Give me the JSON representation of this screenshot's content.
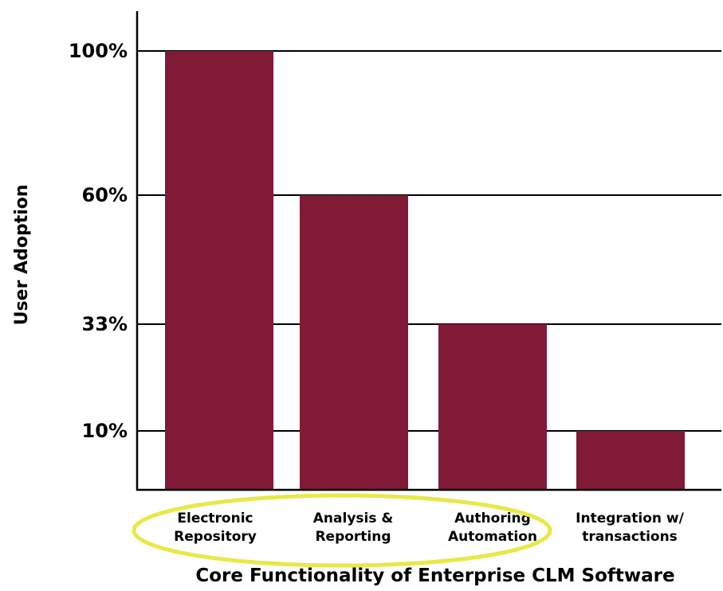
{
  "chart_data": {
    "type": "bar",
    "categories": [
      [
        "Electronic",
        "Repository"
      ],
      [
        "Analysis &",
        "Reporting"
      ],
      [
        "Authoring",
        "Automation"
      ],
      [
        "Integration w/",
        "transactions"
      ]
    ],
    "values": [
      100,
      60,
      33,
      10
    ],
    "ytick_labels": [
      "10%",
      "33%",
      "60%",
      "100%"
    ],
    "ytick_values": [
      10,
      33,
      60,
      100
    ],
    "xlabel": "Core Functionality of Enterprise CLM Software",
    "ylabel": "User Adoption",
    "grid": true,
    "colors": {
      "bar": "#801a37",
      "highlight_ellipse": "#e8e84a",
      "axis": "#000000"
    },
    "annotation": "highlight ellipse around first three categories"
  }
}
